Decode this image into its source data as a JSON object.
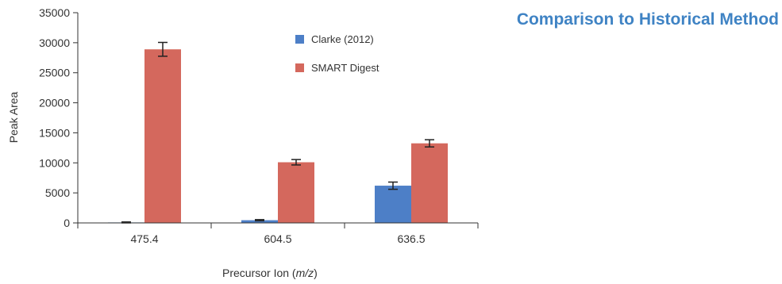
{
  "page": {
    "heading": "Comparison to Historical Method"
  },
  "chart_data": {
    "type": "bar",
    "categories": [
      "475.4",
      "604.5",
      "636.5"
    ],
    "series": [
      {
        "name": "Clarke (2012)",
        "color": "#4d7fc7",
        "values": [
          80,
          450,
          6200
        ],
        "errors": [
          80,
          100,
          600
        ]
      },
      {
        "name": "SMART Digest",
        "color": "#d4685d",
        "values": [
          28900,
          10100,
          13250
        ],
        "errors": [
          1150,
          450,
          600
        ]
      }
    ],
    "ylabel": "Peak Area",
    "xlabel_prefix": "Precursor Ion (",
    "xlabel_italic": "m/z",
    "xlabel_suffix": ")",
    "ylim": [
      0,
      35000
    ],
    "yticks": [
      0,
      5000,
      10000,
      15000,
      20000,
      25000,
      30000,
      35000
    ],
    "legend_position": "top-center",
    "grid": false
  }
}
